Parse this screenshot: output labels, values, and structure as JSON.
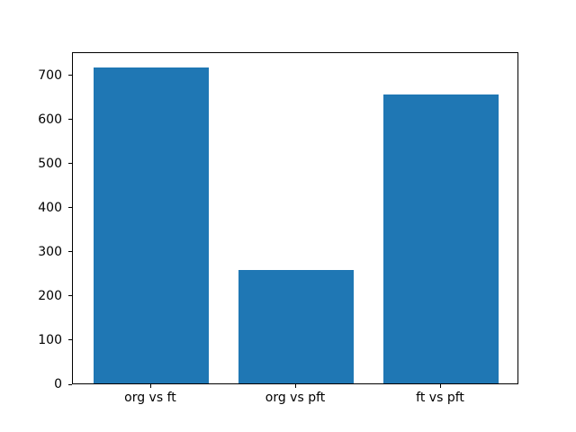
{
  "chart_data": {
    "type": "bar",
    "categories": [
      "org vs ft",
      "org vs pft",
      "ft vs pft"
    ],
    "values": [
      717,
      257,
      655
    ],
    "title": "",
    "xlabel": "",
    "ylabel": "",
    "yticks": [
      0,
      100,
      200,
      300,
      400,
      500,
      600,
      700
    ],
    "ylim": [
      0,
      753
    ],
    "bar_color": "#1f77b4",
    "spine_color": "#000000",
    "background_color": "#ffffff",
    "legend": "none",
    "grid": "off"
  }
}
